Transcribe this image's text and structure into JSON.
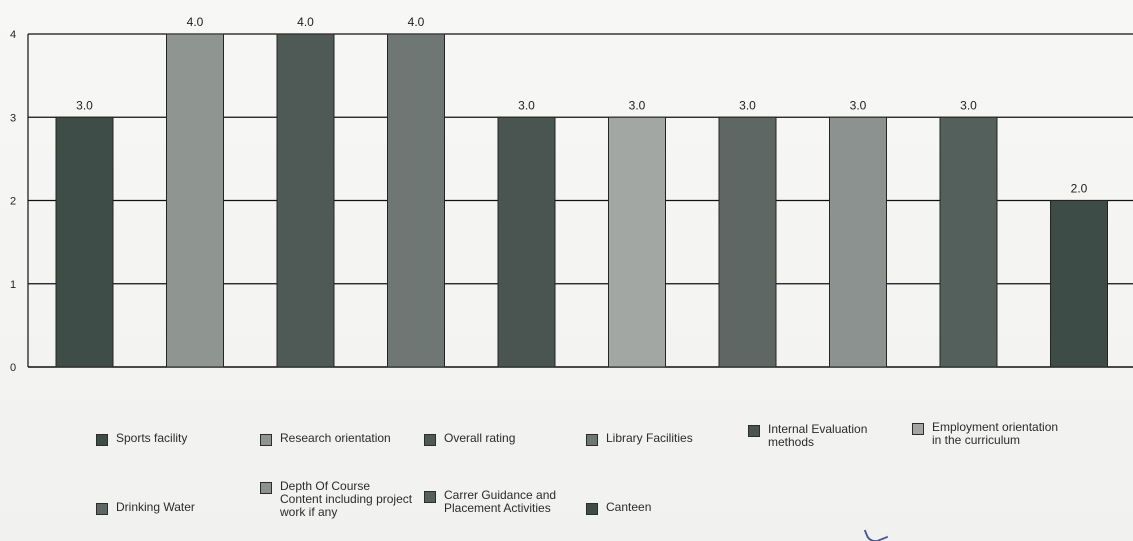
{
  "chart_data": {
    "type": "bar",
    "categories": [
      "Sports facility",
      "Research orientation",
      "Overall rating",
      "Library Facilities",
      "Internal Evaluation methods",
      "Employment orientation in the curriculum",
      "Drinking Water",
      "Depth Of Course Content including project work if any",
      "Carrer Guidance and Placement Activities",
      "Canteen"
    ],
    "values": [
      3.0,
      4.0,
      4.0,
      4.0,
      3.0,
      3.0,
      3.0,
      3.0,
      3.0,
      2.0
    ],
    "value_labels": [
      "3.0",
      "4.0",
      "4.0",
      "4.0",
      "3.0",
      "3.0",
      "3.0",
      "3.0",
      "3.0",
      "2.0"
    ],
    "title": "",
    "xlabel": "",
    "ylabel": "",
    "ylim": [
      0,
      4
    ],
    "yticks": [
      "0",
      "1",
      "2",
      "3",
      "4"
    ],
    "grid": true,
    "legend_position": "bottom"
  },
  "legend": {
    "items": [
      {
        "label": "Sports facility",
        "color": "#3f4d48"
      },
      {
        "label": "Research orientation",
        "color": "#8f9691"
      },
      {
        "label": "Overall rating",
        "color": "#4f5a57"
      },
      {
        "label": "Library Facilities",
        "color": "#6f7775"
      },
      {
        "label": "Internal Evaluation\nmethods",
        "color": "#4a5552"
      },
      {
        "label": "Employment orientation\nin the curriculum",
        "color": "#a2a7a3"
      },
      {
        "label": "Drinking Water",
        "color": "#5e6764"
      },
      {
        "label": "Depth Of Course\nContent including project\nwork if any",
        "color": "#8b928f"
      },
      {
        "label": "Carrer Guidance and\nPlacement Activities",
        "color": "#54605c"
      },
      {
        "label": "Canteen",
        "color": "#3e4c47"
      }
    ]
  },
  "colors": {
    "bar_outline": "#242424",
    "gridline": "#111111",
    "axis": "#111111",
    "text": "#1f1f1f",
    "background": "#f4f4f2"
  }
}
